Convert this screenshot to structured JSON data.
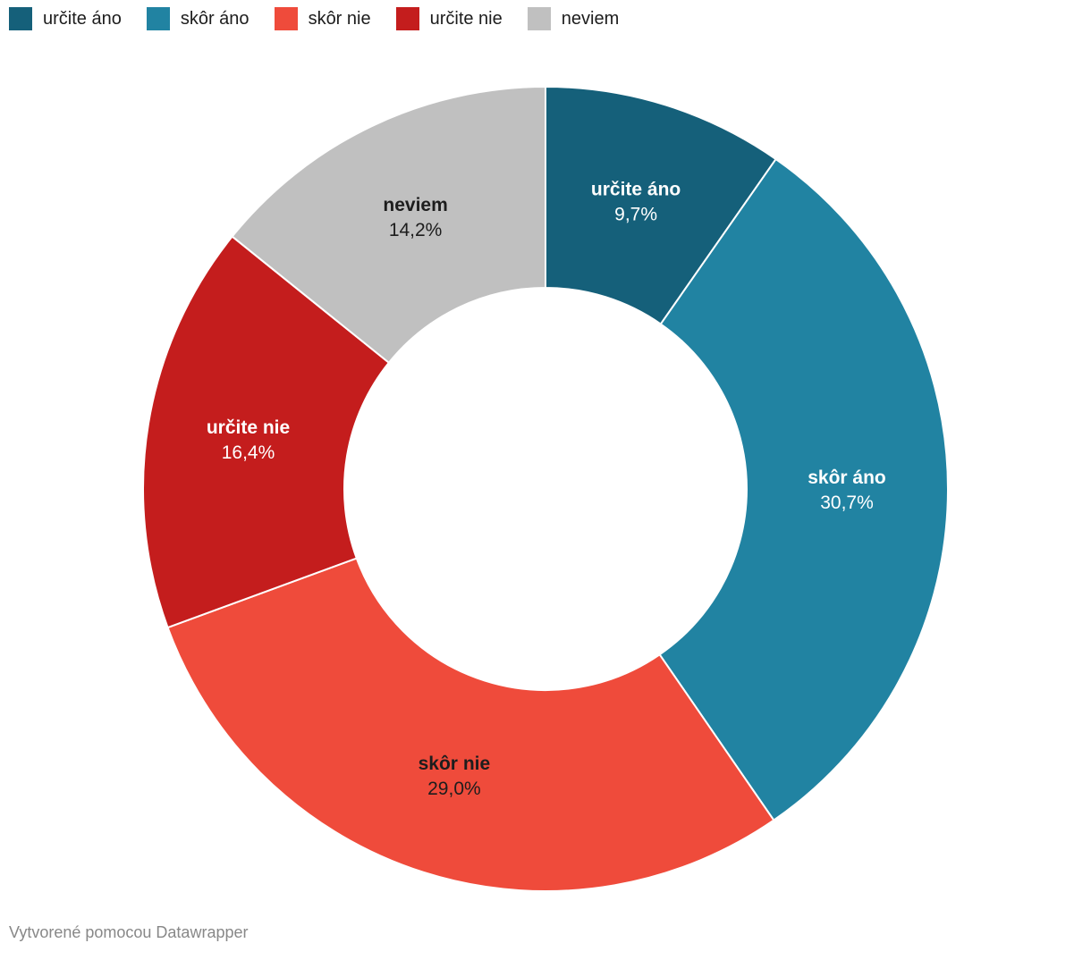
{
  "chart_data": {
    "type": "pie",
    "subtype": "donut",
    "categories": [
      "určite áno",
      "skôr áno",
      "skôr nie",
      "určite nie",
      "neviem"
    ],
    "values": [
      9.7,
      30.7,
      29.0,
      16.4,
      14.2
    ],
    "value_labels": [
      "9,7%",
      "30,7%",
      "29,0%",
      "16,4%",
      "14,2%"
    ],
    "colors": [
      "#15607a",
      "#2183a2",
      "#ef4b3b",
      "#c41d1d",
      "#c0c0c0"
    ],
    "label_text_colors": [
      "#ffffff",
      "#ffffff",
      "#1d1d1d",
      "#ffffff",
      "#1d1d1d"
    ],
    "separator_color": "#ffffff",
    "start_angle_deg": 0,
    "direction": "clockwise",
    "inner_radius_ratio": 0.5,
    "legend_position": "top",
    "title": "",
    "xlabel": "",
    "ylabel": ""
  },
  "footer": {
    "attribution": "Vytvorené pomocou Datawrapper"
  }
}
